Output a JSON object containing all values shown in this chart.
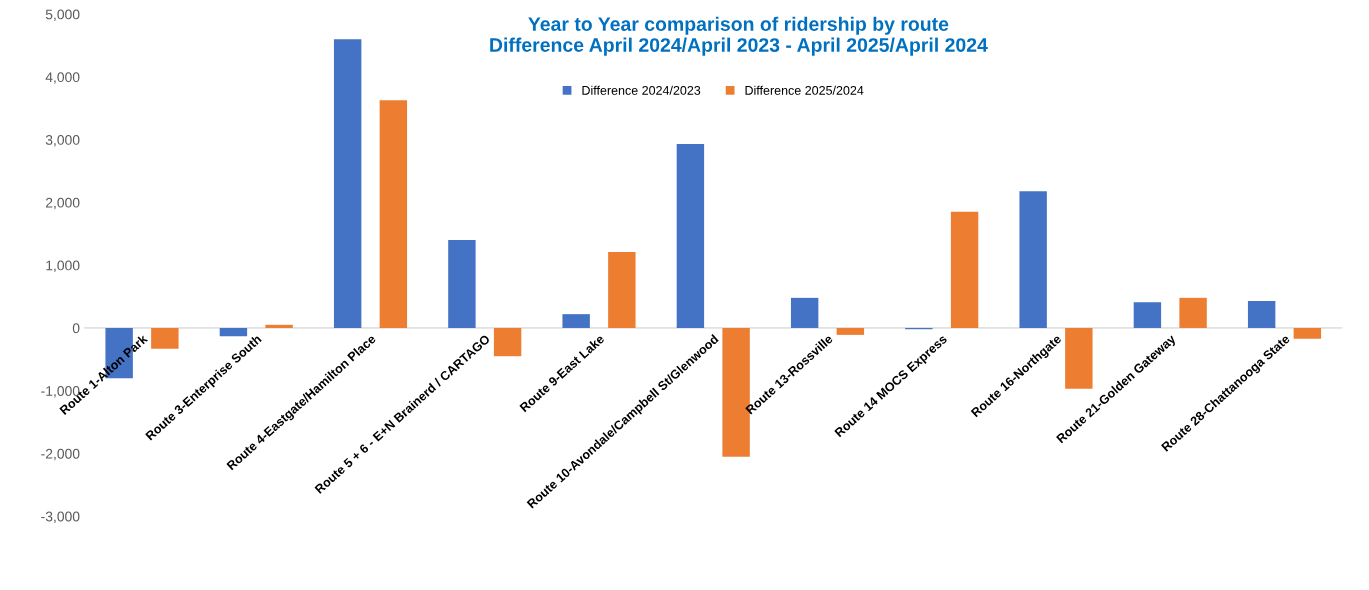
{
  "chart_data": {
    "type": "bar",
    "title": "Year to Year comparison of ridership by route\nDifference April 2024/April 2023 - April 2025/April 2024",
    "categories": [
      "Route 1-Alton Park",
      "Route 3-Enterprise South",
      "Route 4-Eastgate/Hamilton Place",
      "Route 5 + 6 - E+N Brainerd / CARTAGO",
      "Route 9-East Lake",
      "Route 10-Avondale/Campbell St/Glenwood",
      "Route 13-Rossville",
      "Route 14 MOCS Express",
      "Route 16-Northgate",
      "Route 21-Golden Gateway",
      "Route 28-Chattanooga State"
    ],
    "series": [
      {
        "name": "Difference 2024/2023",
        "color": "#4472c4",
        "values": [
          -800,
          -130,
          4600,
          1400,
          220,
          2930,
          480,
          -20,
          2180,
          410,
          430
        ]
      },
      {
        "name": "Difference 2025/2024",
        "color": "#ed7d31",
        "values": [
          -330,
          50,
          3630,
          -450,
          1210,
          -2050,
          -110,
          1850,
          -970,
          480,
          -170
        ]
      }
    ],
    "ylim": [
      -3000,
      5000
    ],
    "yticks": [
      {
        "value": -3000,
        "label": "-3,000"
      },
      {
        "value": -2000,
        "label": "-2,000"
      },
      {
        "value": -1000,
        "label": "-1,000"
      },
      0,
      {
        "value": 1000,
        "label": "1,000"
      },
      {
        "value": 2000,
        "label": "2,000"
      },
      {
        "value": 3000,
        "label": "3,000"
      },
      {
        "value": 4000,
        "label": "4,000"
      },
      {
        "value": 5000,
        "label": "5,000"
      }
    ],
    "grid": false,
    "legend": "top"
  }
}
